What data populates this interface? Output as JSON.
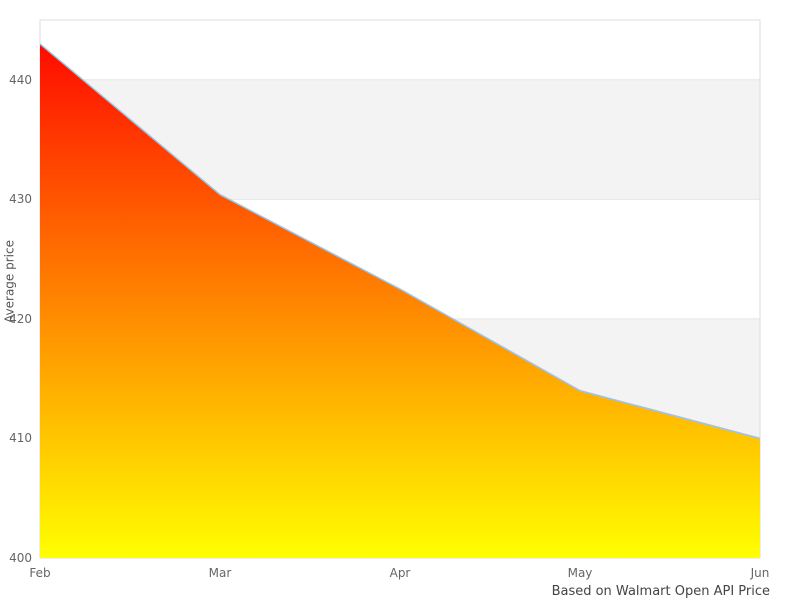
{
  "chart_data": {
    "type": "area",
    "categories": [
      "Feb",
      "Mar",
      "Apr",
      "May",
      "Jun"
    ],
    "values": [
      443,
      430.4,
      422.5,
      414,
      410
    ],
    "series_name": "Average price",
    "title": "",
    "xlabel": "",
    "ylabel": "Average price",
    "caption": "Based on Walmart Open API Price",
    "ylim": [
      400,
      445
    ],
    "y_ticks": [
      400,
      410,
      420,
      430,
      440
    ],
    "grid": "alternating horizontal bands, gray between 410-420 and 430-440",
    "legend_position": "none",
    "colors": {
      "gradient_top": "#ff0000",
      "gradient_bottom": "#ffff00",
      "line": "#a6c3dc",
      "band": "#f3f3f3",
      "grid_line": "#e7e7e7",
      "plot_border": "#dcdcdc",
      "tick_text": "#666666",
      "caption_text": "#444444",
      "background": "#ffffff"
    }
  }
}
